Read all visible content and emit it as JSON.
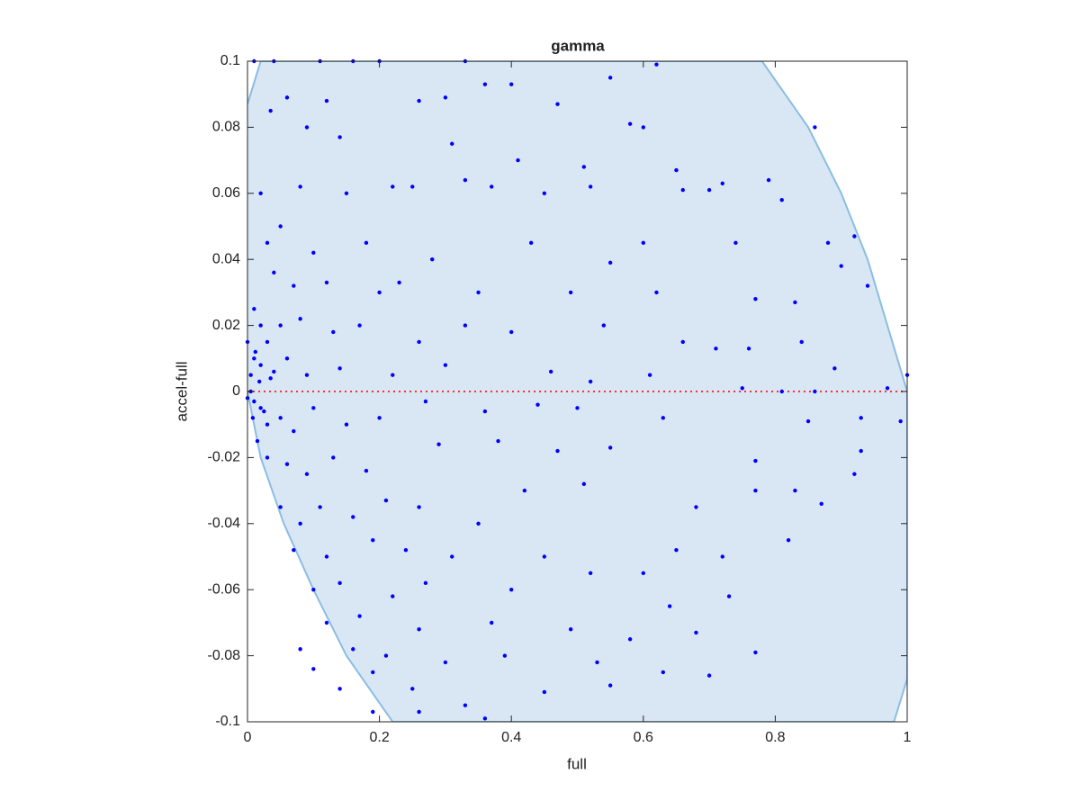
{
  "chart_data": {
    "type": "scatter",
    "title": "gamma",
    "x_label": "full",
    "y_label": "accel-full",
    "xlim": [
      0,
      1
    ],
    "ylim": [
      -0.1,
      0.1
    ],
    "xticks": [
      0,
      0.2,
      0.4,
      0.6,
      0.8,
      1
    ],
    "yticks": [
      -0.1,
      -0.08,
      -0.06,
      -0.04,
      -0.02,
      0,
      0.02,
      0.04,
      0.06,
      0.08,
      0.1
    ],
    "grid": false,
    "color": "#0000ff",
    "region": {
      "color": "#d8e7f3",
      "edge_color": "#8bbde3",
      "x": [
        0,
        0.02,
        0.78,
        0.85,
        0.9,
        0.94,
        0.97,
        1,
        1,
        0.98,
        0.22,
        0.15,
        0.1,
        0.055,
        0.02,
        0
      ],
      "y": [
        0.087,
        0.1,
        0.1,
        0.08,
        0.06,
        0.04,
        0.02,
        0,
        -0.087,
        -0.1,
        -0.1,
        -0.08,
        -0.06,
        -0.04,
        -0.02,
        0
      ]
    },
    "reference_line": {
      "y": 0,
      "color": "#ff3030"
    },
    "x": [
      0.01,
      0.04,
      0.11,
      0.16,
      0.2,
      0.33,
      0.62,
      0.55,
      0.36,
      0.4,
      0.3,
      0.26,
      0.12,
      0.035,
      0.06,
      0.09,
      0.47,
      0.58,
      0.6,
      0.86,
      0.14,
      0.31,
      0.41,
      0.51,
      0.65,
      0.72,
      0.79,
      0.7,
      0.02,
      0.08,
      0.15,
      0.22,
      0.25,
      0.33,
      0.37,
      0.45,
      0.52,
      0.66,
      0.81,
      0.03,
      0.05,
      0.1,
      0.18,
      0.28,
      0.43,
      0.55,
      0.6,
      0.74,
      0.88,
      0.92,
      0.9,
      0.04,
      0.07,
      0.12,
      0.2,
      0.23,
      0.35,
      0.49,
      0.62,
      0.77,
      0.83,
      0.94,
      0.01,
      0.02,
      0.03,
      0.05,
      0.08,
      0.13,
      0.17,
      0.26,
      0.33,
      0.4,
      0.54,
      0.66,
      0.71,
      0.76,
      0.84,
      0.01,
      0.02,
      0.04,
      0.06,
      0.09,
      0.14,
      0.22,
      0.3,
      0.46,
      0.52,
      0.61,
      0.75,
      0.81,
      0.86,
      0.89,
      0.97,
      1.0,
      0.005,
      0.01,
      0.02,
      0.03,
      0.05,
      0.07,
      0.1,
      0.15,
      0.2,
      0.27,
      0.36,
      0.44,
      0.5,
      0.63,
      0.85,
      0.93,
      0.99,
      0.03,
      0.06,
      0.09,
      0.13,
      0.18,
      0.29,
      0.38,
      0.47,
      0.55,
      0.77,
      0.93,
      0.92,
      0.05,
      0.08,
      0.11,
      0.16,
      0.21,
      0.26,
      0.35,
      0.42,
      0.51,
      0.68,
      0.77,
      0.83,
      0.87,
      0.07,
      0.12,
      0.19,
      0.24,
      0.31,
      0.45,
      0.65,
      0.72,
      0.82,
      0.1,
      0.14,
      0.22,
      0.27,
      0.4,
      0.52,
      0.6,
      0.73,
      0.12,
      0.17,
      0.26,
      0.37,
      0.49,
      0.58,
      0.64,
      0.08,
      0.16,
      0.21,
      0.3,
      0.39,
      0.53,
      0.68,
      0.77,
      0.1,
      0.14,
      0.19,
      0.25,
      0.33,
      0.45,
      0.55,
      0.63,
      0.7,
      0.19,
      0.26,
      0.36,
      0.0,
      0.005,
      0.008,
      0.012,
      0.015,
      0.0,
      0.018,
      0.025,
      0.035
    ],
    "y": [
      0.1,
      0.1,
      0.1,
      0.1,
      0.1,
      0.1,
      0.099,
      0.095,
      0.093,
      0.093,
      0.089,
      0.088,
      0.088,
      0.085,
      0.089,
      0.08,
      0.087,
      0.081,
      0.08,
      0.08,
      0.077,
      0.075,
      0.07,
      0.068,
      0.067,
      0.063,
      0.064,
      0.061,
      0.06,
      0.062,
      0.06,
      0.062,
      0.062,
      0.064,
      0.062,
      0.06,
      0.062,
      0.061,
      0.058,
      0.045,
      0.05,
      0.042,
      0.045,
      0.04,
      0.045,
      0.039,
      0.045,
      0.045,
      0.045,
      0.047,
      0.038,
      0.036,
      0.032,
      0.033,
      0.03,
      0.033,
      0.03,
      0.03,
      0.03,
      0.028,
      0.027,
      0.032,
      0.025,
      0.02,
      0.015,
      0.02,
      0.022,
      0.018,
      0.02,
      0.015,
      0.02,
      0.018,
      0.02,
      0.015,
      0.013,
      0.013,
      0.015,
      0.01,
      0.008,
      0.006,
      0.01,
      0.005,
      0.007,
      0.005,
      0.008,
      0.006,
      0.003,
      0.005,
      0.001,
      0.0,
      0.0,
      0.007,
      0.001,
      0.005,
      0.0,
      -0.003,
      -0.005,
      -0.01,
      -0.008,
      -0.012,
      -0.005,
      -0.01,
      -0.008,
      -0.003,
      -0.006,
      -0.004,
      -0.005,
      -0.008,
      -0.009,
      -0.008,
      -0.009,
      -0.02,
      -0.022,
      -0.025,
      -0.02,
      -0.024,
      -0.016,
      -0.015,
      -0.018,
      -0.017,
      -0.021,
      -0.018,
      -0.025,
      -0.035,
      -0.04,
      -0.035,
      -0.038,
      -0.033,
      -0.035,
      -0.04,
      -0.03,
      -0.028,
      -0.035,
      -0.03,
      -0.03,
      -0.034,
      -0.048,
      -0.05,
      -0.045,
      -0.048,
      -0.05,
      -0.05,
      -0.048,
      -0.05,
      -0.045,
      -0.06,
      -0.058,
      -0.062,
      -0.058,
      -0.06,
      -0.055,
      -0.055,
      -0.062,
      -0.07,
      -0.068,
      -0.072,
      -0.07,
      -0.072,
      -0.075,
      -0.065,
      -0.078,
      -0.078,
      -0.08,
      -0.082,
      -0.08,
      -0.082,
      -0.073,
      -0.079,
      -0.084,
      -0.09,
      -0.085,
      -0.09,
      -0.095,
      -0.091,
      -0.089,
      -0.085,
      -0.086,
      -0.097,
      -0.097,
      -0.099,
      0.015,
      0.005,
      -0.008,
      0.012,
      -0.015,
      -0.002,
      0.003,
      -0.006,
      0.004
    ]
  }
}
